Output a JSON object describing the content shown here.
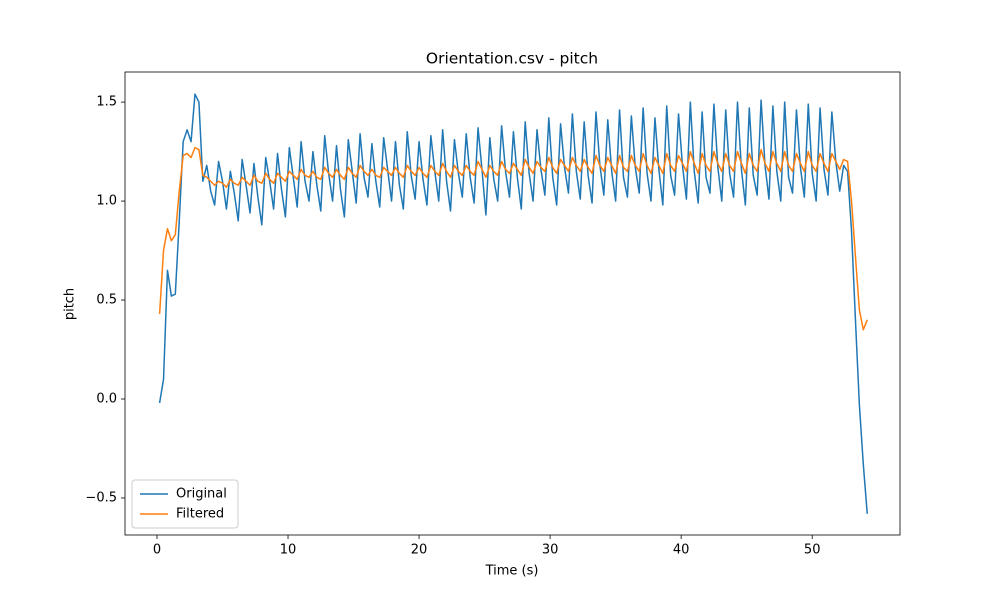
{
  "chart_data": {
    "type": "line",
    "title": "Orientation.csv - pitch",
    "xlabel": "Time (s)",
    "ylabel": "pitch",
    "x": [
      0.2,
      0.5,
      0.8,
      1.1,
      1.4,
      1.7,
      2,
      2.3,
      2.6,
      2.9,
      3.2,
      3.5,
      3.8,
      4.1,
      4.4,
      4.7,
      5,
      5.3,
      5.6,
      5.9,
      6.2,
      6.5,
      6.8,
      7.1,
      7.4,
      7.7,
      8,
      8.3,
      8.6,
      8.9,
      9.2,
      9.5,
      9.8,
      10.1,
      10.4,
      10.7,
      11,
      11.3,
      11.6,
      11.9,
      12.2,
      12.5,
      12.8,
      13.1,
      13.4,
      13.7,
      14,
      14.3,
      14.6,
      14.9,
      15.2,
      15.5,
      15.8,
      16.1,
      16.4,
      16.7,
      17,
      17.3,
      17.6,
      17.9,
      18.2,
      18.5,
      18.8,
      19.1,
      19.4,
      19.7,
      20,
      20.3,
      20.6,
      20.9,
      21.2,
      21.5,
      21.8,
      22.1,
      22.4,
      22.7,
      23,
      23.3,
      23.6,
      23.9,
      24.2,
      24.5,
      24.8,
      25.1,
      25.4,
      25.7,
      26,
      26.3,
      26.6,
      26.9,
      27.2,
      27.5,
      27.8,
      28.1,
      28.4,
      28.7,
      29,
      29.3,
      29.6,
      29.9,
      30.2,
      30.5,
      30.8,
      31.1,
      31.4,
      31.7,
      32,
      32.3,
      32.6,
      32.9,
      33.2,
      33.5,
      33.8,
      34.1,
      34.4,
      34.7,
      35,
      35.3,
      35.6,
      35.9,
      36.2,
      36.5,
      36.8,
      37.1,
      37.4,
      37.7,
      38,
      38.3,
      38.6,
      38.9,
      39.2,
      39.5,
      39.8,
      40.1,
      40.4,
      40.7,
      41,
      41.3,
      41.6,
      41.9,
      42.2,
      42.5,
      42.8,
      43.1,
      43.4,
      43.7,
      44,
      44.3,
      44.6,
      44.9,
      45.2,
      45.5,
      45.8,
      46.1,
      46.4,
      46.7,
      47,
      47.3,
      47.6,
      47.9,
      48.2,
      48.5,
      48.8,
      49.1,
      49.4,
      49.7,
      50,
      50.3,
      50.6,
      50.9,
      51.2,
      51.5,
      51.8,
      52.1,
      52.4,
      52.7,
      53,
      53.3,
      53.6,
      53.9,
      54.2
    ],
    "series": [
      {
        "name": "Original",
        "color": "#1f77b4",
        "values": [
          -0.02,
          0.1,
          0.65,
          0.52,
          0.53,
          0.9,
          1.3,
          1.36,
          1.3,
          1.54,
          1.5,
          1.1,
          1.18,
          1.05,
          0.98,
          1.2,
          1.1,
          0.96,
          1.15,
          1.04,
          0.9,
          1.21,
          1.08,
          0.94,
          1.19,
          1.02,
          0.88,
          1.22,
          1.1,
          0.96,
          1.24,
          1.06,
          0.92,
          1.27,
          1.12,
          0.97,
          1.3,
          1.1,
          1.0,
          1.25,
          1.08,
          0.95,
          1.33,
          1.14,
          1.0,
          1.28,
          1.06,
          0.92,
          1.31,
          1.15,
          0.99,
          1.34,
          1.12,
          1.02,
          1.29,
          1.1,
          0.97,
          1.32,
          1.16,
          1.0,
          1.3,
          1.08,
          0.96,
          1.35,
          1.13,
          1.01,
          1.3,
          1.11,
          0.98,
          1.33,
          1.15,
          1.0,
          1.36,
          1.1,
          0.95,
          1.31,
          1.14,
          1.02,
          1.34,
          1.12,
          0.99,
          1.37,
          1.16,
          0.93,
          1.32,
          1.11,
          1.0,
          1.38,
          1.15,
          1.02,
          1.35,
          1.12,
          0.96,
          1.4,
          1.14,
          1.0,
          1.36,
          1.16,
          1.03,
          1.42,
          1.12,
          0.98,
          1.39,
          1.17,
          1.04,
          1.44,
          1.15,
          1.01,
          1.4,
          1.13,
          0.99,
          1.45,
          1.18,
          1.03,
          1.41,
          1.15,
          1.0,
          1.46,
          1.12,
          1.02,
          1.43,
          1.17,
          1.04,
          1.47,
          1.14,
          1.0,
          1.42,
          1.16,
          0.98,
          1.48,
          1.13,
          1.03,
          1.44,
          1.18,
          1.01,
          1.5,
          1.15,
          0.99,
          1.45,
          1.12,
          1.04,
          1.49,
          1.17,
          1.0,
          1.46,
          1.14,
          1.02,
          1.5,
          1.16,
          0.98,
          1.47,
          1.13,
          1.03,
          1.51,
          1.18,
          1.01,
          1.48,
          1.15,
          1.0,
          1.5,
          1.12,
          1.04,
          1.46,
          1.17,
          1.02,
          1.49,
          1.14,
          1.0,
          1.47,
          1.16,
          1.03,
          1.45,
          1.2,
          1.05,
          1.18,
          1.15,
          0.85,
          0.4,
          -0.03,
          -0.33,
          -0.58
        ]
      },
      {
        "name": "Filtered",
        "color": "#ff7f0e",
        "values": [
          0.43,
          0.75,
          0.86,
          0.8,
          0.83,
          1.05,
          1.23,
          1.24,
          1.22,
          1.27,
          1.26,
          1.13,
          1.12,
          1.1,
          1.08,
          1.1,
          1.09,
          1.07,
          1.11,
          1.09,
          1.08,
          1.12,
          1.1,
          1.08,
          1.13,
          1.1,
          1.09,
          1.14,
          1.11,
          1.09,
          1.14,
          1.12,
          1.1,
          1.15,
          1.13,
          1.11,
          1.16,
          1.13,
          1.12,
          1.15,
          1.12,
          1.11,
          1.17,
          1.14,
          1.12,
          1.16,
          1.13,
          1.11,
          1.17,
          1.14,
          1.12,
          1.18,
          1.15,
          1.13,
          1.16,
          1.13,
          1.12,
          1.17,
          1.15,
          1.13,
          1.17,
          1.14,
          1.12,
          1.18,
          1.15,
          1.13,
          1.17,
          1.14,
          1.12,
          1.18,
          1.15,
          1.13,
          1.19,
          1.15,
          1.12,
          1.18,
          1.15,
          1.13,
          1.18,
          1.15,
          1.13,
          1.2,
          1.16,
          1.12,
          1.18,
          1.15,
          1.13,
          1.2,
          1.16,
          1.14,
          1.19,
          1.16,
          1.13,
          1.21,
          1.17,
          1.14,
          1.2,
          1.17,
          1.15,
          1.22,
          1.17,
          1.14,
          1.21,
          1.18,
          1.15,
          1.22,
          1.18,
          1.15,
          1.21,
          1.17,
          1.14,
          1.23,
          1.18,
          1.15,
          1.22,
          1.18,
          1.14,
          1.23,
          1.17,
          1.15,
          1.23,
          1.18,
          1.15,
          1.24,
          1.18,
          1.14,
          1.22,
          1.18,
          1.14,
          1.24,
          1.18,
          1.15,
          1.23,
          1.19,
          1.15,
          1.25,
          1.19,
          1.14,
          1.24,
          1.18,
          1.15,
          1.25,
          1.19,
          1.15,
          1.24,
          1.18,
          1.15,
          1.25,
          1.19,
          1.14,
          1.24,
          1.18,
          1.15,
          1.26,
          1.19,
          1.15,
          1.25,
          1.19,
          1.15,
          1.25,
          1.18,
          1.15,
          1.24,
          1.19,
          1.15,
          1.25,
          1.18,
          1.15,
          1.24,
          1.19,
          1.15,
          1.24,
          1.2,
          1.16,
          1.21,
          1.2,
          1.0,
          0.72,
          0.45,
          0.35,
          0.4
        ]
      }
    ],
    "xlim": [
      -2.44,
      56.7
    ],
    "ylim": [
      -0.687,
      1.652
    ],
    "xticks": [
      0,
      10,
      20,
      30,
      40,
      50
    ],
    "yticks": [
      {
        "value": -0.5,
        "label": "−0.5"
      },
      {
        "value": 0,
        "label": "0.0"
      },
      {
        "value": 0.5,
        "label": "0.5"
      },
      {
        "value": 1,
        "label": "1.0"
      },
      {
        "value": 1.5,
        "label": "1.5"
      }
    ],
    "legend": "lower left",
    "grid": false
  }
}
